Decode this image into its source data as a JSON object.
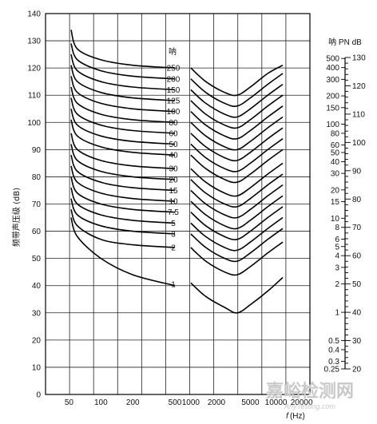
{
  "chart_data": {
    "type": "line",
    "xlabel_italic": "f",
    "xlabel_unit": "(Hz)",
    "ylabel": "频带声压级 (dB)",
    "ylim": [
      0,
      140
    ],
    "yticks": [
      "0",
      "10",
      "20",
      "30",
      "40",
      "50",
      "60",
      "70",
      "80",
      "90",
      "100",
      "110",
      "120",
      "130",
      "140"
    ],
    "xticks_left": [
      {
        "label": "50",
        "x": 50
      },
      {
        "label": "100",
        "x": 100
      },
      {
        "label": "200",
        "x": 200
      },
      {
        "label": "500",
        "x": 500
      }
    ],
    "xticks_right": [
      {
        "label": "1000",
        "x": 1000
      },
      {
        "label": "2000",
        "x": 2000
      },
      {
        "label": "5000",
        "x": 5000
      },
      {
        "label": "10000",
        "x": 10000
      },
      {
        "label": "20000",
        "x": 20000
      }
    ],
    "grid": true,
    "curve_label_header": "呐",
    "series": [
      {
        "name": "250",
        "left_y": [
          134,
          127,
          123,
          121,
          120
        ],
        "right_y": [
          120,
          115,
          111,
          110,
          113,
          118,
          121
        ]
      },
      {
        "name": "200",
        "left_y": [
          129,
          123,
          119,
          117,
          116
        ],
        "right_y": [
          116,
          111,
          107,
          106,
          109,
          114,
          118
        ]
      },
      {
        "name": "150",
        "left_y": [
          125,
          119,
          115,
          113,
          112
        ],
        "right_y": [
          112,
          107,
          103,
          102,
          105,
          110,
          114
        ]
      },
      {
        "name": "125",
        "left_y": [
          121,
          115,
          111,
          109,
          108
        ],
        "right_y": [
          108,
          103,
          99,
          98,
          101,
          106,
          110
        ]
      },
      {
        "name": "100",
        "left_y": [
          117,
          111,
          107,
          105,
          104
        ],
        "right_y": [
          104,
          99,
          95,
          94,
          97,
          102,
          106
        ]
      },
      {
        "name": "80",
        "left_y": [
          113,
          107,
          103,
          101,
          100
        ],
        "right_y": [
          100,
          95,
          91,
          90,
          93,
          98,
          102
        ]
      },
      {
        "name": "60",
        "left_y": [
          109,
          103,
          99,
          97,
          96
        ],
        "right_y": [
          96,
          91,
          87,
          86,
          89,
          94,
          98
        ]
      },
      {
        "name": "50",
        "left_y": [
          105,
          99,
          95,
          93,
          92
        ],
        "right_y": [
          92,
          87,
          83,
          82,
          85,
          90,
          94
        ]
      },
      {
        "name": "40",
        "left_y": [
          101,
          95,
          91,
          89,
          88
        ],
        "right_y": [
          88,
          83,
          79,
          78,
          81,
          86,
          90
        ]
      },
      {
        "name": "30",
        "left_y": [
          96,
          90,
          86,
          84,
          83
        ],
        "right_y": [
          83,
          78,
          74,
          73,
          76,
          81,
          85
        ]
      },
      {
        "name": "20",
        "left_y": [
          92,
          86,
          82,
          80,
          79
        ],
        "right_y": [
          79,
          74,
          70,
          69,
          72,
          77,
          81
        ]
      },
      {
        "name": "15",
        "left_y": [
          88,
          82,
          78,
          76,
          75
        ],
        "right_y": [
          75,
          70,
          66,
          65,
          68,
          73,
          77
        ]
      },
      {
        "name": "10",
        "left_y": [
          84,
          78,
          74,
          72,
          71
        ],
        "right_y": [
          71,
          66,
          62,
          61,
          64,
          69,
          73
        ]
      },
      {
        "name": "7.5",
        "left_y": [
          80,
          74,
          70,
          68,
          67
        ],
        "right_y": [
          67,
          62,
          58,
          57,
          60,
          65,
          69
        ]
      },
      {
        "name": "5",
        "left_y": [
          76,
          70,
          66,
          64,
          63
        ],
        "right_y": [
          63,
          58,
          54,
          53,
          56,
          61,
          65
        ]
      },
      {
        "name": "3",
        "left_y": [
          72,
          66,
          62,
          60,
          59
        ],
        "right_y": [
          59,
          54,
          50,
          49,
          52,
          57,
          61
        ]
      },
      {
        "name": "2",
        "left_y": [
          68,
          62,
          57,
          55,
          54
        ],
        "right_y": [
          54,
          49,
          45,
          44,
          47,
          52,
          56
        ]
      },
      {
        "name": "1",
        "left_y": [
          65,
          58,
          50,
          44,
          40
        ],
        "right_y": [
          41,
          36,
          32,
          30,
          33,
          38,
          43
        ]
      }
    ],
    "left_x_points": [
      40,
      60,
      100,
      200,
      500
    ],
    "right_x_points": [
      1000,
      1500,
      2500,
      3500,
      5000,
      8000,
      12000
    ],
    "right_scale": {
      "title": "呐 PN dB",
      "noys_labels": [
        "500",
        "400",
        "300",
        "200",
        "150",
        "100",
        "80",
        "60",
        "50",
        "40",
        "30",
        "20",
        "15",
        "10",
        "8",
        "6",
        "5",
        "4",
        "3",
        "2",
        "1",
        "0.5",
        "0.4",
        "0.3",
        "0.25"
      ],
      "noys_values": [
        500,
        400,
        300,
        200,
        150,
        100,
        80,
        60,
        50,
        40,
        30,
        20,
        15,
        10,
        8,
        6,
        5,
        4,
        3,
        2,
        1,
        0.5,
        0.4,
        0.3,
        0.25
      ],
      "pndb_labels": [
        "130",
        "120",
        "110",
        "100",
        "90",
        "80",
        "70",
        "60",
        "50",
        "40",
        "30",
        "20"
      ],
      "pndb_values": [
        130,
        120,
        110,
        100,
        90,
        80,
        70,
        60,
        50,
        40,
        30,
        20
      ]
    }
  },
  "watermark": {
    "text": "嘉峪检测网",
    "subtext": "AnyTesting.com"
  }
}
